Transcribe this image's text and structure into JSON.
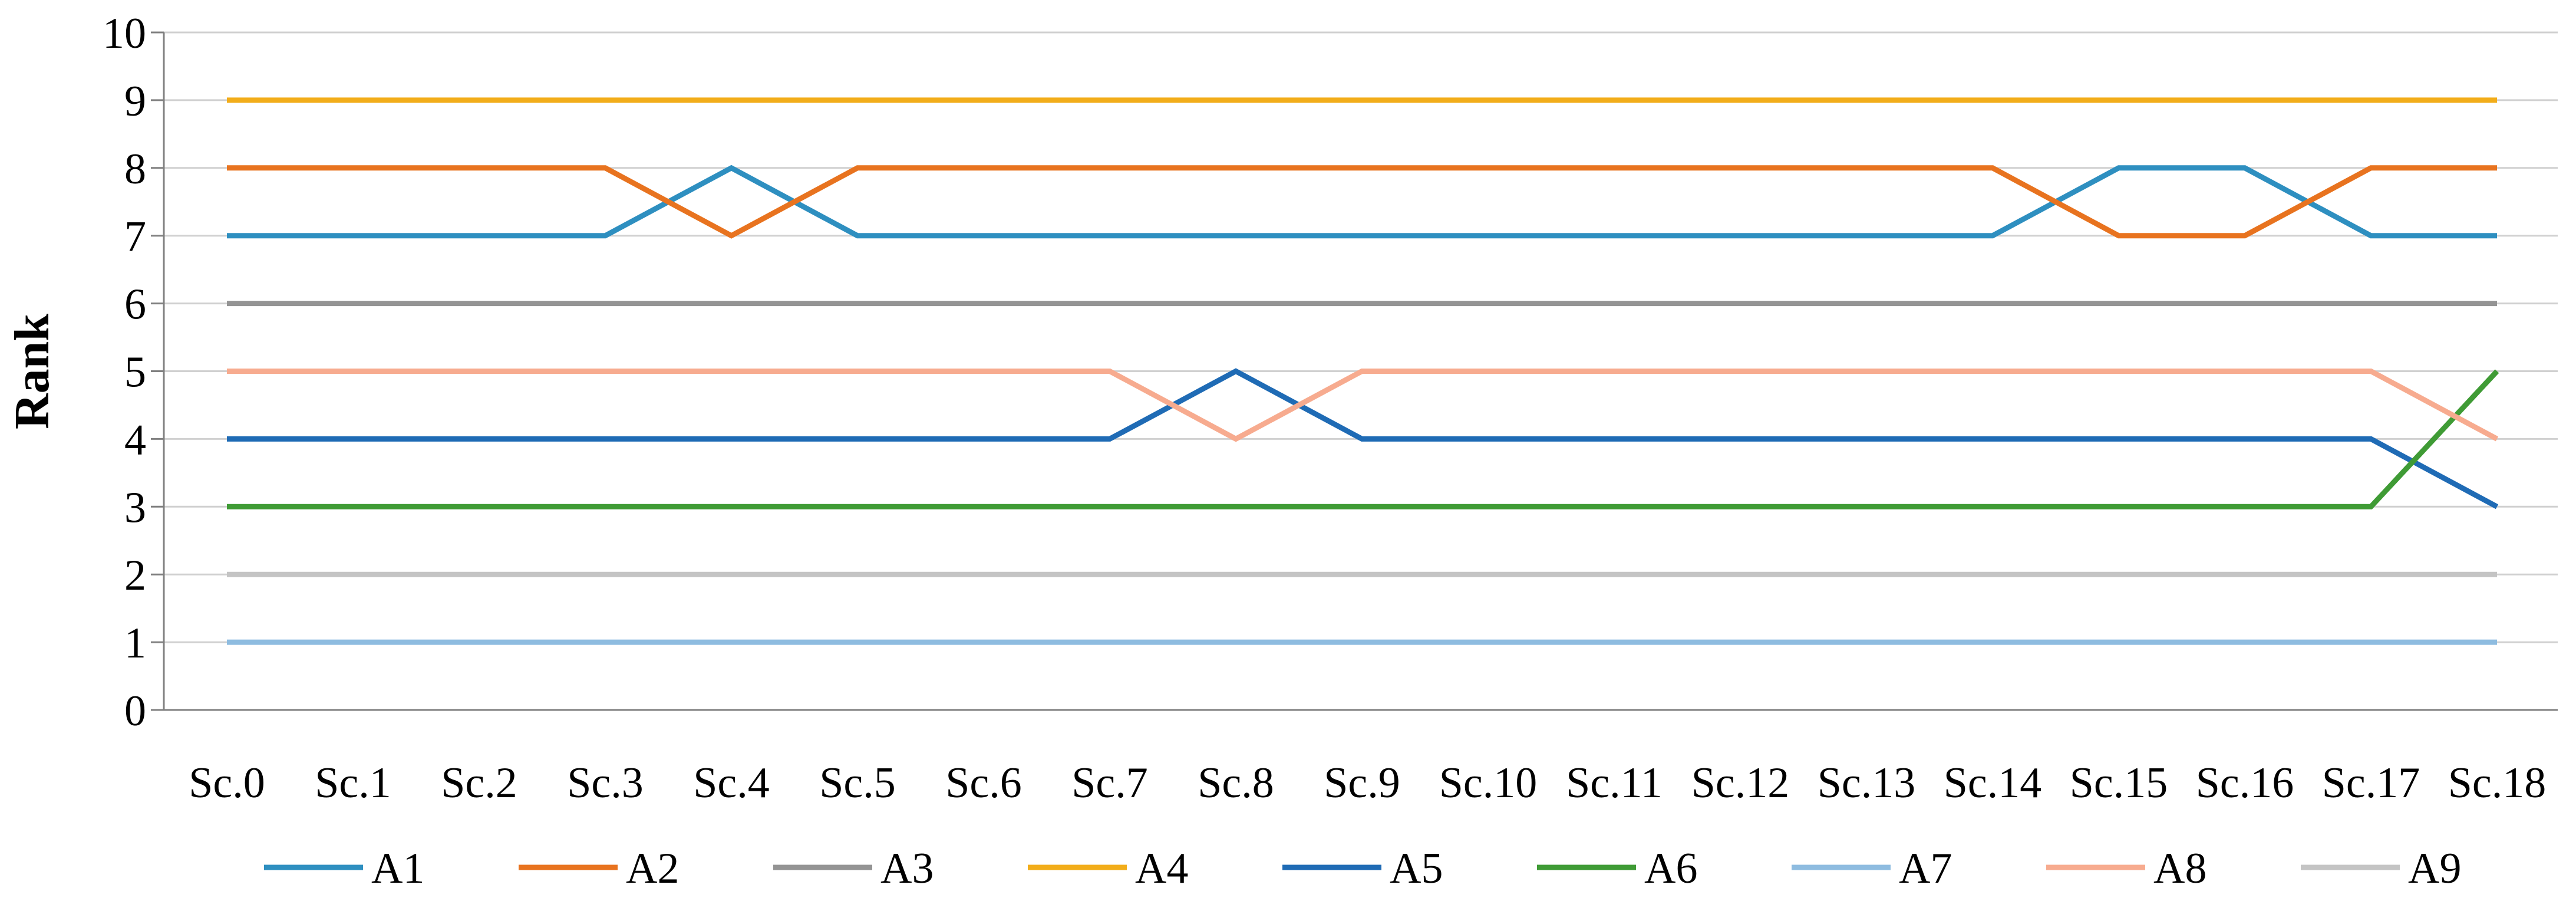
{
  "chart_data": {
    "type": "line",
    "title": "",
    "xlabel": "",
    "ylabel": "Rank",
    "ylim": [
      0,
      10
    ],
    "yticks": [
      "0",
      "1",
      "2",
      "3",
      "4",
      "5",
      "6",
      "7",
      "8",
      "9",
      "10"
    ],
    "categories": [
      "Sc.0",
      "Sc.1",
      "Sc.2",
      "Sc.3",
      "Sc.4",
      "Sc.5",
      "Sc.6",
      "Sc.7",
      "Sc.8",
      "Sc.9",
      "Sc.10",
      "Sc.11",
      "Sc.12",
      "Sc.13",
      "Sc.14",
      "Sc.15",
      "Sc.16",
      "Sc.17",
      "Sc.18"
    ],
    "grid": "horizontal",
    "legend": "bottom",
    "series": [
      {
        "name": "A1",
        "color": "#2E8FC0",
        "values": [
          7,
          7,
          7,
          7,
          8,
          7,
          7,
          7,
          7,
          7,
          7,
          7,
          7,
          7,
          7,
          8,
          8,
          7,
          7
        ]
      },
      {
        "name": "A2",
        "color": "#E8731F",
        "values": [
          8,
          8,
          8,
          8,
          7,
          8,
          8,
          8,
          8,
          8,
          8,
          8,
          8,
          8,
          8,
          7,
          7,
          8,
          8
        ]
      },
      {
        "name": "A3",
        "color": "#949494",
        "values": [
          6,
          6,
          6,
          6,
          6,
          6,
          6,
          6,
          6,
          6,
          6,
          6,
          6,
          6,
          6,
          6,
          6,
          6,
          6
        ]
      },
      {
        "name": "A4",
        "color": "#F2AD1A",
        "values": [
          9,
          9,
          9,
          9,
          9,
          9,
          9,
          9,
          9,
          9,
          9,
          9,
          9,
          9,
          9,
          9,
          9,
          9,
          9
        ]
      },
      {
        "name": "A5",
        "color": "#1F6BB5",
        "values": [
          4,
          4,
          4,
          4,
          4,
          4,
          4,
          4,
          5,
          4,
          4,
          4,
          4,
          4,
          4,
          4,
          4,
          4,
          3
        ]
      },
      {
        "name": "A6",
        "color": "#3F9B35",
        "values": [
          3,
          3,
          3,
          3,
          3,
          3,
          3,
          3,
          3,
          3,
          3,
          3,
          3,
          3,
          3,
          3,
          3,
          3,
          5
        ]
      },
      {
        "name": "A7",
        "color": "#8EBCE0",
        "values": [
          1,
          1,
          1,
          1,
          1,
          1,
          1,
          1,
          1,
          1,
          1,
          1,
          1,
          1,
          1,
          1,
          1,
          1,
          1
        ]
      },
      {
        "name": "A8",
        "color": "#F7AB8F",
        "values": [
          5,
          5,
          5,
          5,
          5,
          5,
          5,
          5,
          4,
          5,
          5,
          5,
          5,
          5,
          5,
          5,
          5,
          5,
          4
        ]
      },
      {
        "name": "A9",
        "color": "#C4C4C4",
        "values": [
          2,
          2,
          2,
          2,
          2,
          2,
          2,
          2,
          2,
          2,
          2,
          2,
          2,
          2,
          2,
          2,
          2,
          2,
          2
        ]
      }
    ]
  }
}
